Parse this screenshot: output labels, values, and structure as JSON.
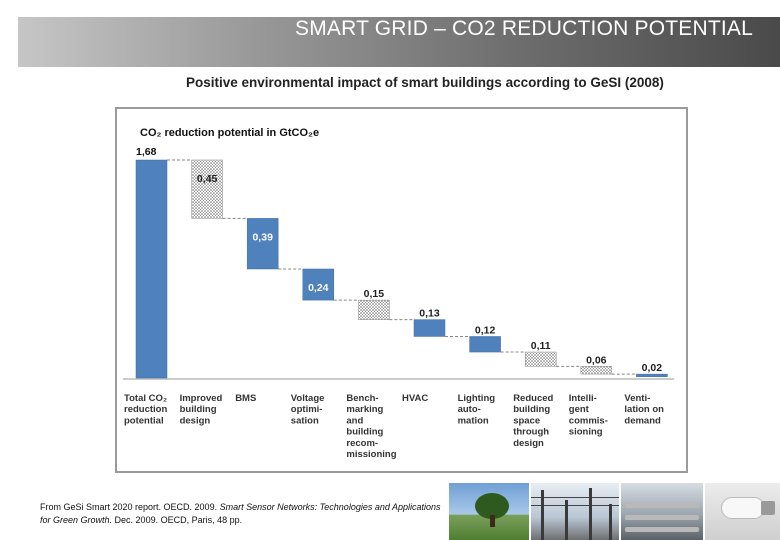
{
  "slide": {
    "title": "SMART GRID – CO2 REDUCTION POTENTIAL"
  },
  "chart_heading": "Positive environmental impact of smart buildings according to GeSI (2008)",
  "source": {
    "prefix": "From GeSi Smart 2020 report. OECD. 2009.",
    "italic": "Smart Sensor Networks: Technologies and Applications for Green Growth.",
    "suffix": "Dec. 2009. OECD, Paris, 48 pp."
  },
  "chart_data": {
    "type": "bar",
    "subtype": "waterfall",
    "title": "CO₂ reduction potential in GtCO₂e",
    "xlabel": "",
    "ylabel": "",
    "ylim": [
      0,
      1.68
    ],
    "grid": false,
    "legend": "none",
    "categories": [
      "Total CO₂ reduction potential",
      "Improved building design",
      "BMS",
      "Voltage optimi-sation",
      "Bench-marking and building recom-missioning",
      "HVAC",
      "Lighting auto-mation",
      "Reduced building space through design",
      "Intelli-gent commis-sioning",
      "Venti-lation on demand"
    ],
    "category_lines": [
      [
        "Total CO₂",
        "reduction",
        "potential"
      ],
      [
        "Improved",
        "building",
        "design"
      ],
      [
        "BMS"
      ],
      [
        "Voltage",
        "optimi-",
        "sation"
      ],
      [
        "Bench-",
        "marking",
        "and",
        "building",
        "recom-",
        "missioning"
      ],
      [
        "HVAC"
      ],
      [
        "Lighting",
        "auto-",
        "mation"
      ],
      [
        "Reduced",
        "building",
        "space",
        "through",
        "design"
      ],
      [
        "Intelli-",
        "gent",
        "commis-",
        "sioning"
      ],
      [
        "Venti-",
        "lation on",
        "demand"
      ]
    ],
    "values": [
      1.68,
      0.45,
      0.39,
      0.24,
      0.15,
      0.13,
      0.12,
      0.11,
      0.06,
      0.02
    ],
    "value_labels": [
      "1,68",
      "0,45",
      "0,39",
      "0,24",
      "0,15",
      "0,13",
      "0,12",
      "0,11",
      "0,06",
      "0,02"
    ],
    "styles": [
      "solid",
      "hatched",
      "solid",
      "solid",
      "hatched",
      "solid",
      "solid",
      "hatched",
      "hatched",
      "solid"
    ],
    "colors": {
      "solid": "#4f81bd",
      "hatched": "#9a9a9a",
      "connector": "#888888"
    }
  }
}
